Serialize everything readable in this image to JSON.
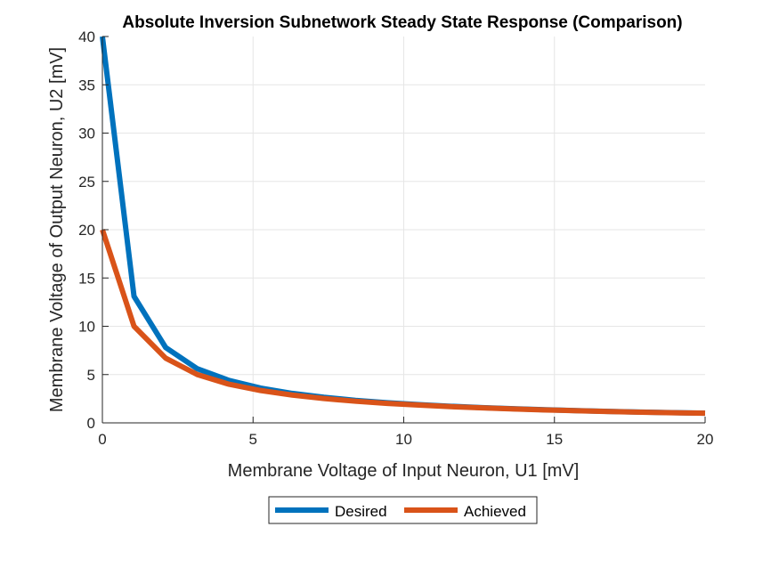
{
  "chart_data": {
    "type": "line",
    "title": "Absolute Inversion Subnetwork Steady State Response (Comparison)",
    "xlabel": "Membrane Voltage of Input Neuron, U1 [mV]",
    "ylabel": "Membrane Voltage of Output Neuron, U2 [mV]",
    "xlim": [
      0,
      20
    ],
    "ylim": [
      0,
      40
    ],
    "xticks": [
      0,
      5,
      10,
      15,
      20
    ],
    "yticks": [
      0,
      5,
      10,
      15,
      20,
      25,
      30,
      35,
      40
    ],
    "grid": true,
    "legend_position": "bottom-center",
    "series": [
      {
        "name": "Desired",
        "color": "#0072BD",
        "x": [
          0,
          1.05,
          2.1,
          3.15,
          4.2,
          5.25,
          6.3,
          7.35,
          8.4,
          9.45,
          10.5,
          11.55,
          12.6,
          13.65,
          14.7,
          15.75,
          16.8,
          17.85,
          18.9,
          20
        ],
        "y": [
          40,
          13.1,
          7.8,
          5.6,
          4.4,
          3.6,
          3.05,
          2.65,
          2.33,
          2.09,
          1.89,
          1.72,
          1.58,
          1.46,
          1.36,
          1.27,
          1.19,
          1.12,
          1.06,
          1.0
        ]
      },
      {
        "name": "Achieved",
        "color": "#D95319",
        "x": [
          0,
          1.05,
          2.1,
          3.15,
          4.2,
          5.25,
          6.3,
          7.35,
          8.4,
          9.45,
          10.5,
          11.55,
          12.6,
          13.65,
          14.7,
          15.75,
          16.8,
          17.85,
          18.9,
          20
        ],
        "y": [
          20,
          10.0,
          6.7,
          5.0,
          4.0,
          3.35,
          2.88,
          2.52,
          2.24,
          2.02,
          1.84,
          1.68,
          1.55,
          1.44,
          1.34,
          1.26,
          1.18,
          1.11,
          1.05,
          1.0
        ]
      }
    ]
  }
}
